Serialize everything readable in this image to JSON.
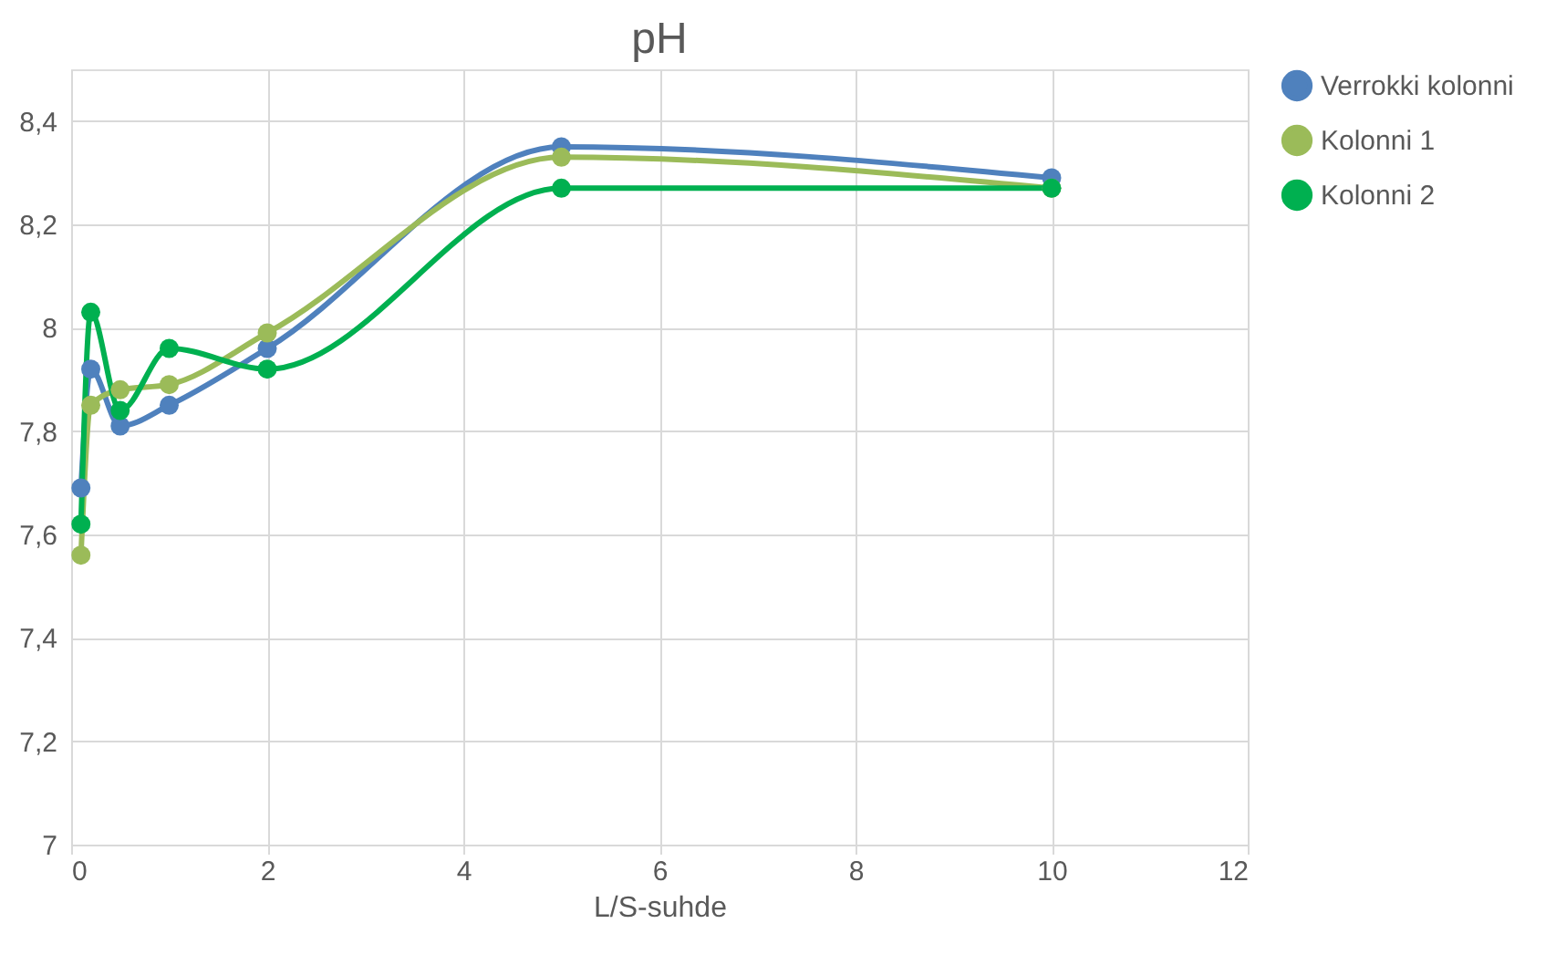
{
  "chart_data": {
    "type": "line",
    "title": "pH",
    "xlabel": "L/S-suhde",
    "x": [
      0.1,
      0.2,
      0.5,
      1,
      2,
      5,
      10
    ],
    "series": [
      {
        "name": "Verrokki kolonni",
        "color": "#4f81bd",
        "values": [
          7.69,
          7.92,
          7.81,
          7.85,
          7.96,
          8.35,
          8.29
        ]
      },
      {
        "name": "Kolonni 1",
        "color": "#9bbb59",
        "values": [
          7.56,
          7.85,
          7.88,
          7.89,
          7.99,
          8.33,
          8.27
        ]
      },
      {
        "name": "Kolonni 2",
        "color": "#00b050",
        "values": [
          7.62,
          8.03,
          7.84,
          7.96,
          7.92,
          8.27,
          8.27
        ]
      }
    ],
    "xlim": [
      0,
      12
    ],
    "xticks": [
      0,
      2,
      4,
      6,
      8,
      10,
      12
    ],
    "ylim": [
      7,
      8.5
    ],
    "yticks": [
      7,
      {
        "value": 7.2,
        "label": "7,2"
      },
      {
        "value": 7.4,
        "label": "7,4"
      },
      {
        "value": 7.6,
        "label": "7,6"
      },
      {
        "value": 7.8,
        "label": "7,8"
      },
      8,
      {
        "value": 8.2,
        "label": "8,2"
      },
      {
        "value": 8.4,
        "label": "8,4"
      }
    ],
    "grid": true,
    "legend": "right",
    "marker": "circle",
    "line_style": "solid"
  }
}
